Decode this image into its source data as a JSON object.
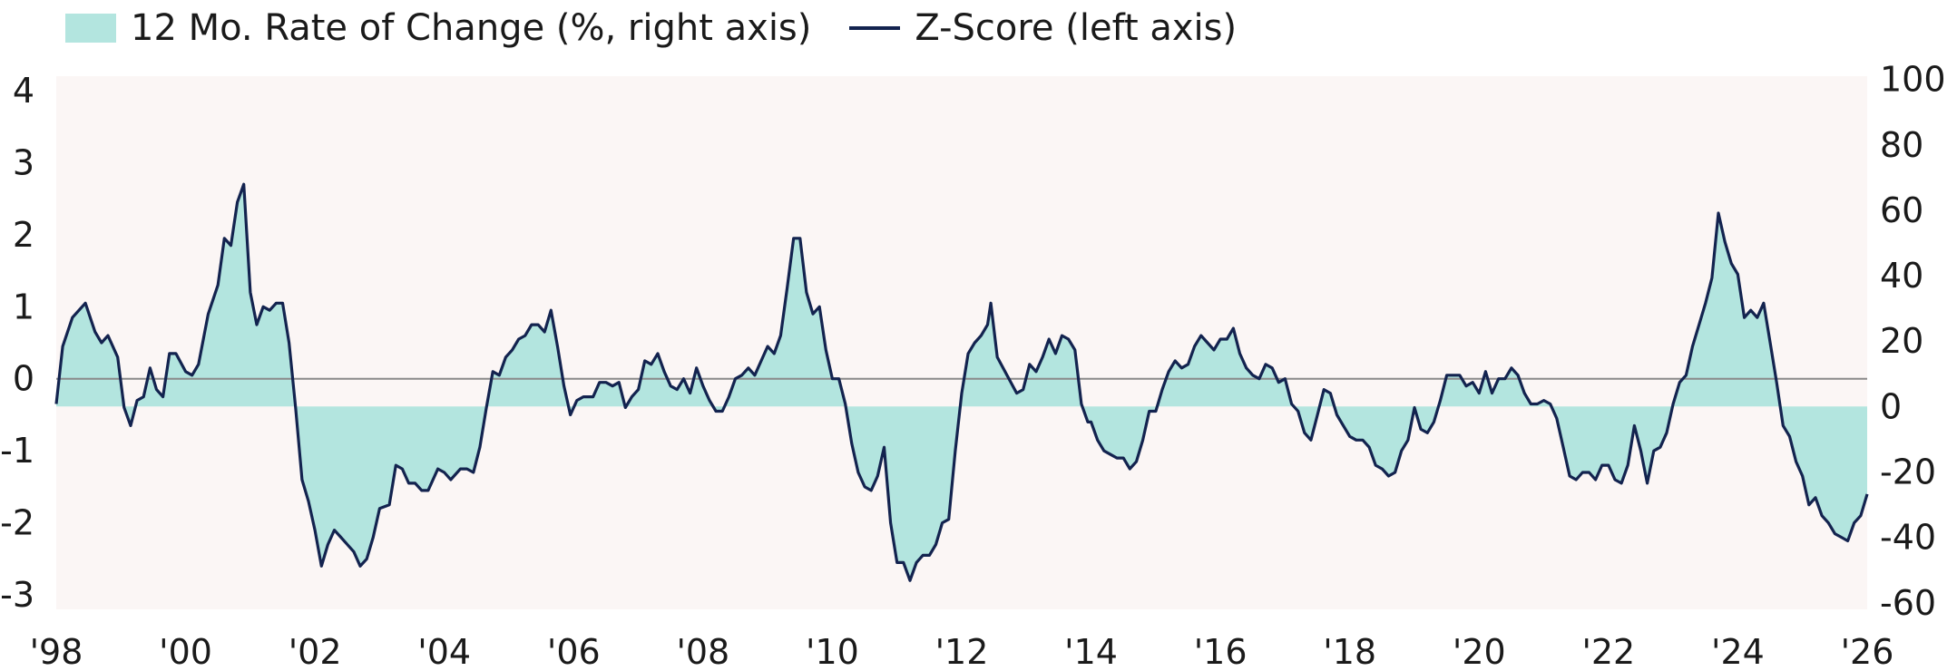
{
  "chart_data": {
    "type": "line",
    "legend": [
      {
        "label": "12 Mo. Rate of Change (%, right axis)",
        "kind": "area",
        "color": "#b3e5df"
      },
      {
        "label": "Z-Score (left axis)",
        "kind": "line",
        "color": "#13234f"
      }
    ],
    "y_left": {
      "ticks": [
        "4",
        "3",
        "2",
        "1",
        "0",
        "-1",
        "-2",
        "-3"
      ],
      "lim": [
        -3.2,
        4.2
      ]
    },
    "y_right": {
      "ticks": [
        "100",
        "80",
        "60",
        "40",
        "20",
        "0",
        "-20",
        "-40",
        "-60"
      ],
      "lim": [
        -62,
        101
      ]
    },
    "x_ticks": [
      "'98",
      "'00",
      "'02",
      "'04",
      "'06",
      "'08",
      "'10",
      "'12",
      "'14",
      "'16",
      "'18",
      "'20",
      "'22",
      "'24",
      "'26"
    ],
    "x_lim": [
      1998,
      2026
    ],
    "plot_background": "#fbf6f5",
    "zero_line_color": "#8a8a8a",
    "series_zscore": [
      [
        1998.0,
        -0.35
      ],
      [
        1998.1,
        0.45
      ],
      [
        1998.25,
        0.85
      ],
      [
        1998.45,
        1.05
      ],
      [
        1998.6,
        0.65
      ],
      [
        1998.7,
        0.5
      ],
      [
        1998.8,
        0.6
      ],
      [
        1998.95,
        0.3
      ],
      [
        1999.05,
        -0.4
      ],
      [
        1999.15,
        -0.65
      ],
      [
        1999.25,
        -0.3
      ],
      [
        1999.35,
        -0.25
      ],
      [
        1999.45,
        0.15
      ],
      [
        1999.55,
        -0.15
      ],
      [
        1999.65,
        -0.25
      ],
      [
        1999.75,
        0.35
      ],
      [
        1999.85,
        0.35
      ],
      [
        2000.0,
        0.1
      ],
      [
        2000.1,
        0.05
      ],
      [
        2000.2,
        0.2
      ],
      [
        2000.35,
        0.9
      ],
      [
        2000.5,
        1.3
      ],
      [
        2000.6,
        1.95
      ],
      [
        2000.7,
        1.85
      ],
      [
        2000.8,
        2.45
      ],
      [
        2000.9,
        2.7
      ],
      [
        2001.0,
        1.2
      ],
      [
        2001.1,
        0.75
      ],
      [
        2001.2,
        1.0
      ],
      [
        2001.3,
        0.95
      ],
      [
        2001.4,
        1.05
      ],
      [
        2001.5,
        1.05
      ],
      [
        2001.6,
        0.5
      ],
      [
        2001.7,
        -0.4
      ],
      [
        2001.8,
        -1.4
      ],
      [
        2001.9,
        -1.7
      ],
      [
        2002.0,
        -2.1
      ],
      [
        2002.1,
        -2.6
      ],
      [
        2002.2,
        -2.3
      ],
      [
        2002.3,
        -2.1
      ],
      [
        2002.4,
        -2.2
      ],
      [
        2002.5,
        -2.3
      ],
      [
        2002.6,
        -2.4
      ],
      [
        2002.7,
        -2.6
      ],
      [
        2002.8,
        -2.5
      ],
      [
        2002.9,
        -2.2
      ],
      [
        2003.0,
        -1.8
      ],
      [
        2003.15,
        -1.75
      ],
      [
        2003.25,
        -1.2
      ],
      [
        2003.35,
        -1.25
      ],
      [
        2003.45,
        -1.45
      ],
      [
        2003.55,
        -1.45
      ],
      [
        2003.65,
        -1.55
      ],
      [
        2003.75,
        -1.55
      ],
      [
        2003.9,
        -1.25
      ],
      [
        2004.0,
        -1.3
      ],
      [
        2004.1,
        -1.4
      ],
      [
        2004.25,
        -1.25
      ],
      [
        2004.35,
        -1.25
      ],
      [
        2004.45,
        -1.3
      ],
      [
        2004.55,
        -0.95
      ],
      [
        2004.65,
        -0.4
      ],
      [
        2004.75,
        0.1
      ],
      [
        2004.85,
        0.05
      ],
      [
        2004.95,
        0.3
      ],
      [
        2005.05,
        0.4
      ],
      [
        2005.15,
        0.55
      ],
      [
        2005.25,
        0.6
      ],
      [
        2005.35,
        0.75
      ],
      [
        2005.45,
        0.75
      ],
      [
        2005.55,
        0.65
      ],
      [
        2005.65,
        0.95
      ],
      [
        2005.75,
        0.45
      ],
      [
        2005.85,
        -0.1
      ],
      [
        2005.95,
        -0.5
      ],
      [
        2006.05,
        -0.3
      ],
      [
        2006.15,
        -0.25
      ],
      [
        2006.3,
        -0.25
      ],
      [
        2006.4,
        -0.05
      ],
      [
        2006.5,
        -0.05
      ],
      [
        2006.6,
        -0.1
      ],
      [
        2006.7,
        -0.05
      ],
      [
        2006.8,
        -0.4
      ],
      [
        2006.9,
        -0.25
      ],
      [
        2007.0,
        -0.15
      ],
      [
        2007.1,
        0.25
      ],
      [
        2007.2,
        0.2
      ],
      [
        2007.3,
        0.35
      ],
      [
        2007.4,
        0.1
      ],
      [
        2007.5,
        -0.1
      ],
      [
        2007.6,
        -0.15
      ],
      [
        2007.7,
        0.0
      ],
      [
        2007.8,
        -0.2
      ],
      [
        2007.9,
        0.15
      ],
      [
        2008.0,
        -0.1
      ],
      [
        2008.1,
        -0.3
      ],
      [
        2008.2,
        -0.45
      ],
      [
        2008.3,
        -0.45
      ],
      [
        2008.4,
        -0.25
      ],
      [
        2008.5,
        0.0
      ],
      [
        2008.6,
        0.05
      ],
      [
        2008.7,
        0.15
      ],
      [
        2008.8,
        0.05
      ],
      [
        2008.9,
        0.25
      ],
      [
        2009.0,
        0.45
      ],
      [
        2009.1,
        0.35
      ],
      [
        2009.2,
        0.6
      ],
      [
        2009.3,
        1.25
      ],
      [
        2009.4,
        1.95
      ],
      [
        2009.5,
        1.95
      ],
      [
        2009.6,
        1.2
      ],
      [
        2009.7,
        0.9
      ],
      [
        2009.8,
        1.0
      ],
      [
        2009.9,
        0.4
      ],
      [
        2010.0,
        0.0
      ],
      [
        2010.1,
        0.0
      ],
      [
        2010.2,
        -0.35
      ],
      [
        2010.3,
        -0.9
      ],
      [
        2010.4,
        -1.3
      ],
      [
        2010.5,
        -1.5
      ],
      [
        2010.6,
        -1.55
      ],
      [
        2010.7,
        -1.35
      ],
      [
        2010.8,
        -0.95
      ],
      [
        2010.9,
        -2.0
      ],
      [
        2011.0,
        -2.55
      ],
      [
        2011.1,
        -2.55
      ],
      [
        2011.2,
        -2.8
      ],
      [
        2011.3,
        -2.55
      ],
      [
        2011.4,
        -2.45
      ],
      [
        2011.5,
        -2.45
      ],
      [
        2011.6,
        -2.3
      ],
      [
        2011.7,
        -2.0
      ],
      [
        2011.8,
        -1.95
      ],
      [
        2011.9,
        -1.0
      ],
      [
        2012.0,
        -0.2
      ],
      [
        2012.1,
        0.35
      ],
      [
        2012.2,
        0.5
      ],
      [
        2012.3,
        0.6
      ],
      [
        2012.4,
        0.75
      ],
      [
        2012.45,
        1.05
      ],
      [
        2012.55,
        0.3
      ],
      [
        2012.7,
        0.05
      ],
      [
        2012.85,
        -0.2
      ],
      [
        2012.95,
        -0.15
      ],
      [
        2013.05,
        0.2
      ],
      [
        2013.15,
        0.1
      ],
      [
        2013.25,
        0.3
      ],
      [
        2013.35,
        0.55
      ],
      [
        2013.45,
        0.35
      ],
      [
        2013.55,
        0.6
      ],
      [
        2013.65,
        0.55
      ],
      [
        2013.75,
        0.4
      ],
      [
        2013.85,
        -0.35
      ],
      [
        2013.95,
        -0.6
      ],
      [
        2014.0,
        -0.6
      ],
      [
        2014.1,
        -0.85
      ],
      [
        2014.2,
        -1.0
      ],
      [
        2014.3,
        -1.05
      ],
      [
        2014.4,
        -1.1
      ],
      [
        2014.5,
        -1.1
      ],
      [
        2014.6,
        -1.25
      ],
      [
        2014.7,
        -1.15
      ],
      [
        2014.8,
        -0.85
      ],
      [
        2014.9,
        -0.45
      ],
      [
        2015.0,
        -0.45
      ],
      [
        2015.1,
        -0.15
      ],
      [
        2015.2,
        0.1
      ],
      [
        2015.3,
        0.25
      ],
      [
        2015.4,
        0.15
      ],
      [
        2015.5,
        0.2
      ],
      [
        2015.6,
        0.45
      ],
      [
        2015.7,
        0.6
      ],
      [
        2015.8,
        0.5
      ],
      [
        2015.9,
        0.4
      ],
      [
        2016.0,
        0.55
      ],
      [
        2016.1,
        0.55
      ],
      [
        2016.2,
        0.7
      ],
      [
        2016.3,
        0.35
      ],
      [
        2016.4,
        0.15
      ],
      [
        2016.5,
        0.05
      ],
      [
        2016.6,
        0.0
      ],
      [
        2016.7,
        0.2
      ],
      [
        2016.8,
        0.15
      ],
      [
        2016.9,
        -0.05
      ],
      [
        2017.0,
        0.0
      ],
      [
        2017.1,
        -0.35
      ],
      [
        2017.2,
        -0.45
      ],
      [
        2017.3,
        -0.75
      ],
      [
        2017.4,
        -0.85
      ],
      [
        2017.5,
        -0.5
      ],
      [
        2017.6,
        -0.15
      ],
      [
        2017.7,
        -0.2
      ],
      [
        2017.8,
        -0.5
      ],
      [
        2017.9,
        -0.65
      ],
      [
        2018.0,
        -0.8
      ],
      [
        2018.1,
        -0.85
      ],
      [
        2018.2,
        -0.85
      ],
      [
        2018.3,
        -0.95
      ],
      [
        2018.4,
        -1.2
      ],
      [
        2018.5,
        -1.25
      ],
      [
        2018.6,
        -1.35
      ],
      [
        2018.7,
        -1.3
      ],
      [
        2018.8,
        -1.0
      ],
      [
        2018.9,
        -0.85
      ],
      [
        2019.0,
        -0.4
      ],
      [
        2019.1,
        -0.7
      ],
      [
        2019.2,
        -0.75
      ],
      [
        2019.3,
        -0.6
      ],
      [
        2019.4,
        -0.3
      ],
      [
        2019.5,
        0.05
      ],
      [
        2019.6,
        0.05
      ],
      [
        2019.7,
        0.05
      ],
      [
        2019.8,
        -0.1
      ],
      [
        2019.9,
        -0.05
      ],
      [
        2020.0,
        -0.2
      ],
      [
        2020.1,
        0.1
      ],
      [
        2020.2,
        -0.2
      ],
      [
        2020.3,
        0.0
      ],
      [
        2020.4,
        0.0
      ],
      [
        2020.5,
        0.15
      ],
      [
        2020.6,
        0.05
      ],
      [
        2020.7,
        -0.2
      ],
      [
        2020.8,
        -0.35
      ],
      [
        2020.9,
        -0.35
      ],
      [
        2021.0,
        -0.3
      ],
      [
        2021.1,
        -0.35
      ],
      [
        2021.2,
        -0.55
      ],
      [
        2021.3,
        -0.95
      ],
      [
        2021.4,
        -1.35
      ],
      [
        2021.5,
        -1.4
      ],
      [
        2021.6,
        -1.3
      ],
      [
        2021.7,
        -1.3
      ],
      [
        2021.8,
        -1.4
      ],
      [
        2021.9,
        -1.2
      ],
      [
        2022.0,
        -1.2
      ],
      [
        2022.1,
        -1.4
      ],
      [
        2022.2,
        -1.45
      ],
      [
        2022.3,
        -1.2
      ],
      [
        2022.4,
        -0.65
      ],
      [
        2022.5,
        -1.0
      ],
      [
        2022.6,
        -1.45
      ],
      [
        2022.7,
        -1.0
      ],
      [
        2022.8,
        -0.95
      ],
      [
        2022.9,
        -0.75
      ],
      [
        2023.0,
        -0.35
      ],
      [
        2023.1,
        -0.05
      ],
      [
        2023.2,
        0.05
      ],
      [
        2023.3,
        0.45
      ],
      [
        2023.4,
        0.75
      ],
      [
        2023.5,
        1.05
      ],
      [
        2023.6,
        1.4
      ],
      [
        2023.7,
        2.3
      ],
      [
        2023.8,
        1.9
      ],
      [
        2023.9,
        1.6
      ],
      [
        2024.0,
        1.45
      ],
      [
        2024.1,
        0.85
      ],
      [
        2024.2,
        0.95
      ],
      [
        2024.3,
        0.85
      ],
      [
        2024.4,
        1.05
      ],
      [
        2024.5,
        0.5
      ],
      [
        2024.6,
        -0.05
      ],
      [
        2024.7,
        -0.65
      ],
      [
        2024.8,
        -0.8
      ],
      [
        2024.9,
        -1.15
      ],
      [
        2025.0,
        -1.35
      ],
      [
        2025.1,
        -1.75
      ],
      [
        2025.2,
        -1.65
      ],
      [
        2025.3,
        -1.9
      ],
      [
        2025.4,
        -2.0
      ],
      [
        2025.5,
        -2.15
      ],
      [
        2025.6,
        -2.2
      ],
      [
        2025.7,
        -2.25
      ],
      [
        2025.8,
        -2.0
      ],
      [
        2025.9,
        -1.9
      ],
      [
        2026.0,
        -1.6
      ]
    ]
  }
}
